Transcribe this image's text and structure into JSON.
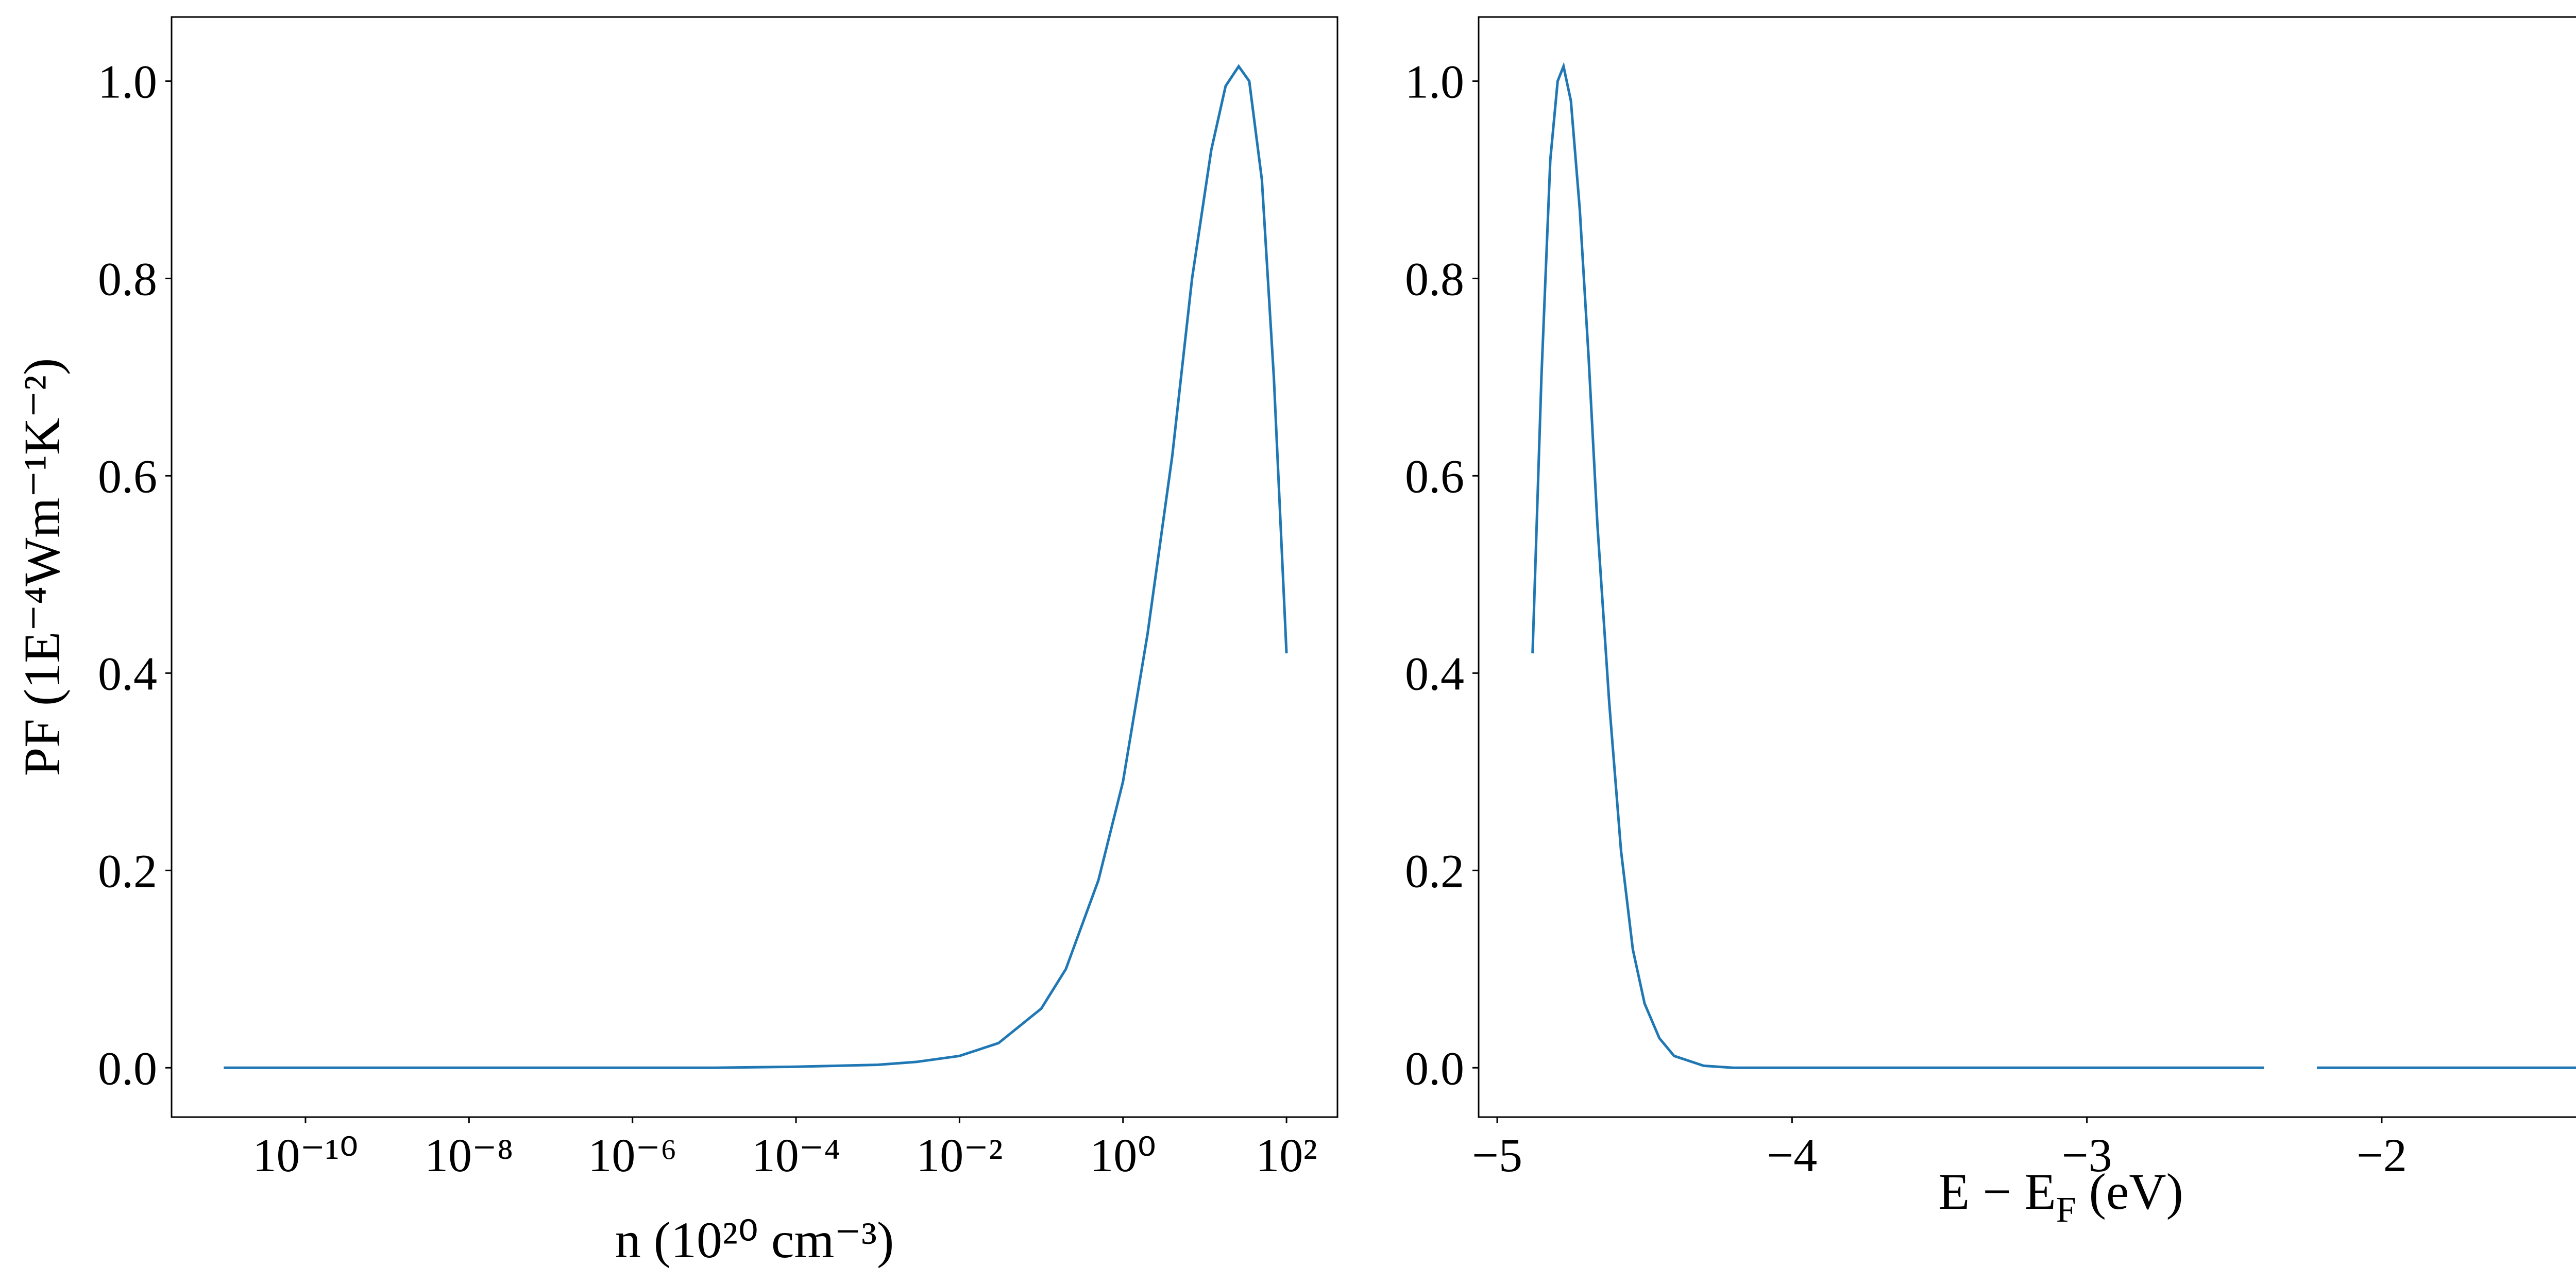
{
  "chart_data": [
    {
      "type": "line",
      "xscale": "log",
      "xlabel": "n (10²⁰ cm⁻³)",
      "ylabel": "PF (1E⁻⁴Wm⁻¹K⁻²)",
      "x": [
        1e-11,
        1e-08,
        1e-05,
        0.0001,
        0.001,
        0.003,
        0.01,
        0.03,
        0.1,
        0.2,
        0.5,
        1,
        2,
        4,
        7,
        12,
        18,
        26,
        35,
        50,
        70,
        100
      ],
      "series": [
        {
          "color": "#1f77b4",
          "values": [
            0,
            0,
            0,
            0.001,
            0.003,
            0.006,
            0.012,
            0.025,
            0.06,
            0.1,
            0.19,
            0.29,
            0.44,
            0.62,
            0.8,
            0.93,
            0.995,
            1.015,
            1.0,
            0.9,
            0.7,
            0.42
          ]
        }
      ],
      "xlim": [
        2.3e-12,
        420
      ],
      "ylim": [
        -0.05,
        1.065
      ],
      "xticks": [
        {
          "value": 1e-10,
          "label": "10⁻¹⁰"
        },
        {
          "value": 1e-08,
          "label": "10⁻⁸"
        },
        {
          "value": 1e-06,
          "label": "10⁻⁶"
        },
        {
          "value": 0.0001,
          "label": "10⁻⁴"
        },
        {
          "value": 0.01,
          "label": "10⁻²"
        },
        {
          "value": 1,
          "label": "10⁰"
        },
        {
          "value": 100,
          "label": "10²"
        }
      ],
      "yticks": [
        {
          "value": 0,
          "label": "0.0"
        },
        0.2,
        0.4,
        0.6,
        0.8,
        {
          "value": 1,
          "label": "1.0"
        }
      ]
    },
    {
      "type": "line",
      "xlabel": [
        "E − E",
        "F",
        " (eV)"
      ],
      "x": [
        -4.88,
        -4.85,
        -4.82,
        -4.795,
        -4.775,
        -4.75,
        -4.72,
        -4.69,
        -4.66,
        -4.62,
        -4.58,
        -4.54,
        -4.5,
        -4.45,
        -4.4,
        -4.3,
        -4.2,
        -3.5,
        -3,
        -2.4,
        -2.3,
        -2.22,
        -1.29
      ],
      "series": [
        {
          "color": "#1f77b4",
          "values": [
            0.42,
            0.7,
            0.92,
            1.0,
            1.015,
            0.98,
            0.87,
            0.72,
            0.55,
            0.37,
            0.22,
            0.12,
            0.065,
            0.03,
            0.012,
            0.002,
            0,
            0,
            0,
            0,
            null,
            0,
            0
          ]
        }
      ],
      "xlim": [
        -5.063,
        -1.114
      ],
      "ylim": [
        -0.05,
        1.065
      ],
      "xticks": [
        {
          "value": -5,
          "label": "−5"
        },
        {
          "value": -4,
          "label": "−4"
        },
        {
          "value": -3,
          "label": "−3"
        },
        {
          "value": -2,
          "label": "−2"
        }
      ],
      "yticks": [
        {
          "value": 0,
          "label": "0.0"
        },
        0.2,
        0.4,
        0.6,
        0.8,
        {
          "value": 1,
          "label": "1.0"
        }
      ]
    }
  ]
}
